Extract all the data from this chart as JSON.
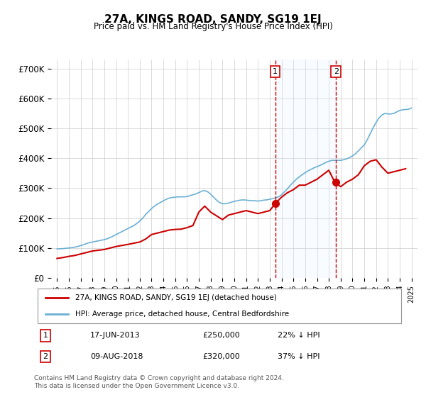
{
  "title": "27A, KINGS ROAD, SANDY, SG19 1EJ",
  "subtitle": "Price paid vs. HM Land Registry's House Price Index (HPI)",
  "ylabel_format": "£{0}K",
  "yticks": [
    0,
    100000,
    200000,
    300000,
    400000,
    500000,
    600000,
    700000
  ],
  "ytick_labels": [
    "£0",
    "£100K",
    "£200K",
    "£300K",
    "£400K",
    "£500K",
    "£600K",
    "£700K"
  ],
  "xlim_start": 1994.5,
  "xlim_end": 2025.5,
  "ylim": [
    0,
    730000
  ],
  "transaction1": {
    "date": "17-JUN-2013",
    "price": 250000,
    "pct": "22%",
    "direction": "↓",
    "year": 2013.46
  },
  "transaction2": {
    "date": "09-AUG-2018",
    "price": 320000,
    "pct": "37%",
    "direction": "↓",
    "year": 2018.61
  },
  "legend_line1": "27A, KINGS ROAD, SANDY, SG19 1EJ (detached house)",
  "legend_line2": "HPI: Average price, detached house, Central Bedfordshire",
  "footnote": "Contains HM Land Registry data © Crown copyright and database right 2024.\nThis data is licensed under the Open Government Licence v3.0.",
  "red_color": "#cc0000",
  "blue_color": "#6ab0d4",
  "shade_color": "#ddeeff",
  "marker_color": "#cc0000",
  "hpi_years": [
    1995,
    1995.25,
    1995.5,
    1995.75,
    1996,
    1996.25,
    1996.5,
    1996.75,
    1997,
    1997.25,
    1997.5,
    1997.75,
    1998,
    1998.25,
    1998.5,
    1998.75,
    1999,
    1999.25,
    1999.5,
    1999.75,
    2000,
    2000.25,
    2000.5,
    2000.75,
    2001,
    2001.25,
    2001.5,
    2001.75,
    2002,
    2002.25,
    2002.5,
    2002.75,
    2003,
    2003.25,
    2003.5,
    2003.75,
    2004,
    2004.25,
    2004.5,
    2004.75,
    2005,
    2005.25,
    2005.5,
    2005.75,
    2006,
    2006.25,
    2006.5,
    2006.75,
    2007,
    2007.25,
    2007.5,
    2007.75,
    2008,
    2008.25,
    2008.5,
    2008.75,
    2009,
    2009.25,
    2009.5,
    2009.75,
    2010,
    2010.25,
    2010.5,
    2010.75,
    2011,
    2011.25,
    2011.5,
    2011.75,
    2012,
    2012.25,
    2012.5,
    2012.75,
    2013,
    2013.25,
    2013.5,
    2013.75,
    2014,
    2014.25,
    2014.5,
    2014.75,
    2015,
    2015.25,
    2015.5,
    2015.75,
    2016,
    2016.25,
    2016.5,
    2016.75,
    2017,
    2017.25,
    2017.5,
    2017.75,
    2018,
    2018.25,
    2018.5,
    2018.75,
    2019,
    2019.25,
    2019.5,
    2019.75,
    2020,
    2020.25,
    2020.5,
    2020.75,
    2021,
    2021.25,
    2021.5,
    2021.75,
    2022,
    2022.25,
    2022.5,
    2022.75,
    2023,
    2023.25,
    2023.5,
    2023.75,
    2024,
    2024.25,
    2024.5,
    2024.75,
    2025
  ],
  "hpi_values": [
    97000,
    97500,
    98000,
    99000,
    100000,
    101000,
    103000,
    105000,
    108000,
    111000,
    115000,
    118000,
    120000,
    122000,
    124000,
    126000,
    128000,
    131000,
    135000,
    140000,
    145000,
    150000,
    155000,
    160000,
    165000,
    170000,
    175000,
    182000,
    190000,
    200000,
    212000,
    222000,
    232000,
    240000,
    247000,
    252000,
    258000,
    263000,
    267000,
    269000,
    270000,
    271000,
    271000,
    271000,
    272000,
    275000,
    278000,
    281000,
    285000,
    290000,
    292000,
    288000,
    280000,
    270000,
    260000,
    252000,
    248000,
    248000,
    250000,
    253000,
    256000,
    258000,
    260000,
    261000,
    260000,
    259000,
    258000,
    258000,
    257000,
    258000,
    260000,
    261000,
    263000,
    265000,
    268000,
    271000,
    278000,
    288000,
    298000,
    310000,
    320000,
    330000,
    338000,
    345000,
    352000,
    358000,
    363000,
    368000,
    372000,
    376000,
    381000,
    386000,
    390000,
    393000,
    393000,
    393000,
    393000,
    395000,
    398000,
    402000,
    408000,
    415000,
    425000,
    435000,
    445000,
    462000,
    482000,
    502000,
    520000,
    535000,
    545000,
    550000,
    548000,
    548000,
    550000,
    555000,
    560000,
    562000,
    563000,
    564000,
    568000
  ],
  "price_years": [
    1995,
    1995.5,
    1996,
    1996.5,
    1997,
    1997.5,
    1998,
    1999,
    1999.5,
    2000,
    2001,
    2002,
    2002.5,
    2003,
    2004,
    2004.5,
    2005,
    2005.5,
    2006,
    2006.5,
    2007,
    2007.5,
    2008,
    2009,
    2009.5,
    2010,
    2010.5,
    2011,
    2011.5,
    2012,
    2012.5,
    2013,
    2013.5,
    2014,
    2014.5,
    2015,
    2015.5,
    2016,
    2016.5,
    2017,
    2017.5,
    2018,
    2018.5,
    2019,
    2019.5,
    2020,
    2020.5,
    2021,
    2021.5,
    2022,
    2022.5,
    2023,
    2023.5,
    2024,
    2024.5
  ],
  "price_values": [
    65000,
    68000,
    72000,
    75000,
    80000,
    85000,
    90000,
    95000,
    100000,
    105000,
    112000,
    120000,
    130000,
    145000,
    155000,
    160000,
    162000,
    163000,
    168000,
    175000,
    220000,
    240000,
    220000,
    195000,
    210000,
    215000,
    220000,
    225000,
    220000,
    215000,
    220000,
    225000,
    250000,
    270000,
    285000,
    295000,
    310000,
    310000,
    320000,
    330000,
    345000,
    360000,
    320000,
    305000,
    320000,
    330000,
    345000,
    375000,
    390000,
    395000,
    370000,
    350000,
    355000,
    360000,
    365000
  ]
}
